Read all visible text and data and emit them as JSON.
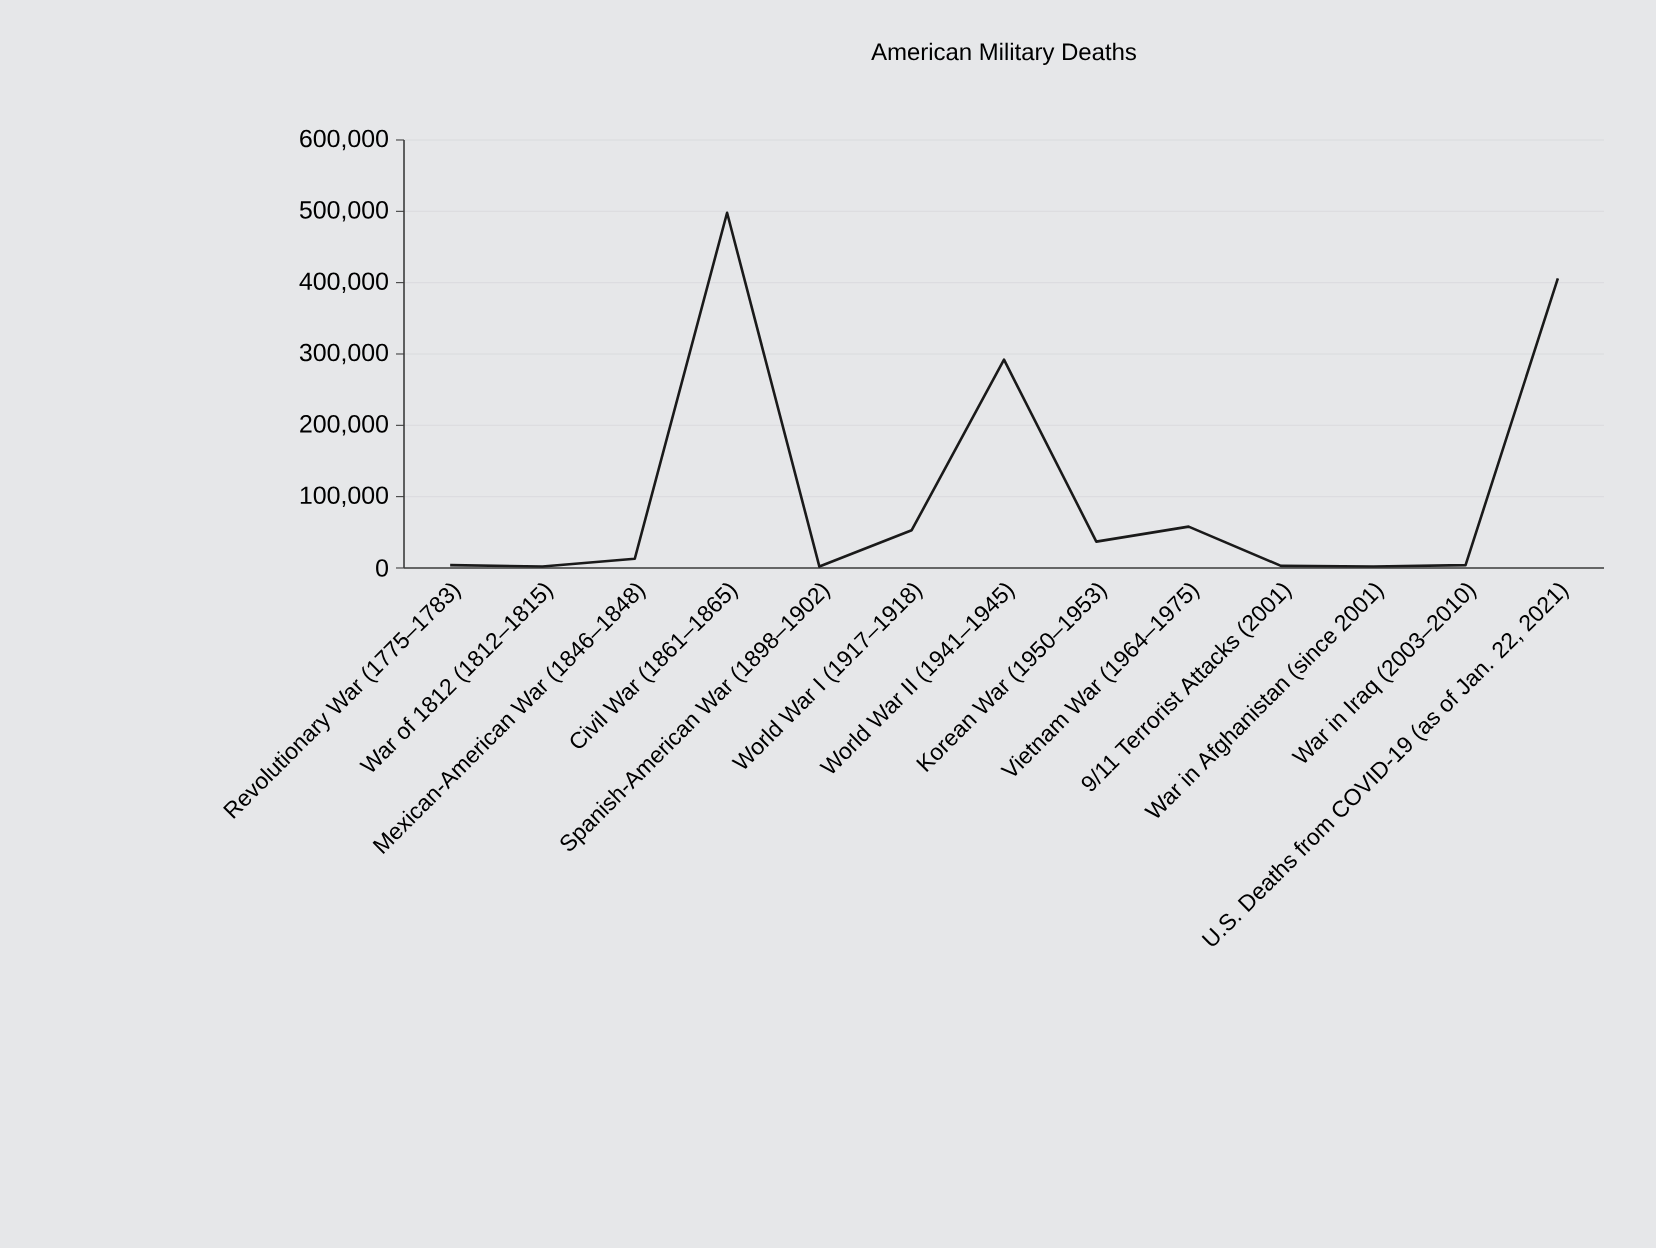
{
  "chart_data": {
    "type": "line",
    "title": "American Military Deaths",
    "categories": [
      "Revolutionary War (1775–1783)",
      "War of 1812 (1812–1815)",
      "Mexican-American War (1846–1848)",
      "Civil War (1861–1865)",
      "Spanish-American War (1898–1902)",
      "World War I (1917–1918)",
      "World War II (1941–1945)",
      "Korean War (1950–1953)",
      "Vietnam War (1964–1975)",
      "9/11 Terrorist Attacks (2001)",
      "War in Afghanistan (since 2001)",
      "War in Iraq (2003–2010)",
      "U.S. Deaths from COVID-19 (as of Jan. 22, 2021)"
    ],
    "series": [
      {
        "color": "#1a1a1a",
        "values": [
          4000,
          2000,
          13000,
          498000,
          2000,
          53000,
          292000,
          37000,
          58000,
          3000,
          2000,
          4000,
          406000
        ]
      }
    ],
    "ylim": [
      0,
      600000
    ],
    "yticks": [
      {
        "value": 0,
        "label": "0"
      },
      {
        "value": 100000,
        "label": "100,000"
      },
      {
        "value": 200000,
        "label": "200,000"
      },
      {
        "value": 300000,
        "label": "300,000"
      },
      {
        "value": 400000,
        "label": "400,000"
      },
      {
        "value": 500000,
        "label": "500,000"
      },
      {
        "value": 600000,
        "label": "600,000"
      }
    ],
    "grid": "y",
    "marker": "none",
    "line_style": "solid"
  }
}
